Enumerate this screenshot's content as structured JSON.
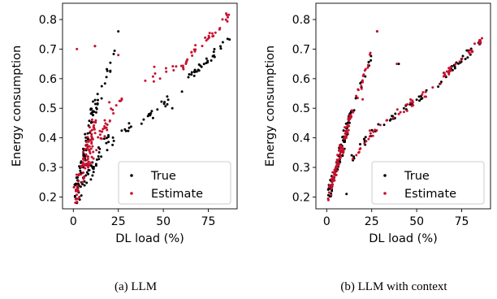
{
  "chart_data": [
    {
      "type": "scatter",
      "caption": "(a) LLM",
      "xlabel": "DL load (%)",
      "ylabel": "Energy consumption",
      "xlim": [
        -6,
        91
      ],
      "ylim": [
        0.16,
        0.855
      ],
      "xticks": [
        "0",
        "25",
        "50",
        "75"
      ],
      "yticks": [
        "0.2",
        "0.3",
        "0.4",
        "0.5",
        "0.6",
        "0.7",
        "0.8"
      ],
      "legend_position": "lower right",
      "series": [
        {
          "name": "True",
          "color": "#000000",
          "segments": [
            {
              "x0": 1,
              "y0": 0.2,
              "x1": 12,
              "y1": 0.52,
              "n": 70,
              "jx": 1.2,
              "jy": 0.03
            },
            {
              "x0": 12,
              "y0": 0.5,
              "x1": 24,
              "y1": 0.7,
              "n": 18,
              "jx": 0.8,
              "jy": 0.02
            },
            {
              "x0": 3,
              "y0": 0.21,
              "x1": 20,
              "y1": 0.4,
              "n": 40,
              "jx": 1.0,
              "jy": 0.025
            },
            {
              "x0": 20,
              "y0": 0.38,
              "x1": 35,
              "y1": 0.45,
              "n": 10,
              "jx": 1.5,
              "jy": 0.02
            },
            {
              "x0": 36,
              "y0": 0.44,
              "x1": 62,
              "y1": 0.58,
              "n": 18,
              "jx": 1.5,
              "jy": 0.015
            },
            {
              "x0": 62,
              "y0": 0.59,
              "x1": 86,
              "y1": 0.73,
              "n": 30,
              "jx": 1.0,
              "jy": 0.012
            }
          ],
          "points": [
            [
              12,
              0.71
            ],
            [
              25,
              0.76
            ],
            [
              2,
              0.18
            ],
            [
              42,
              0.48
            ],
            [
              55,
              0.5
            ]
          ]
        },
        {
          "name": "Estimate",
          "color": "#c8102e",
          "segments": [
            {
              "x0": 1,
              "y0": 0.2,
              "x1": 12,
              "y1": 0.45,
              "n": 80,
              "jx": 1.3,
              "jy": 0.035
            },
            {
              "x0": 5,
              "y0": 0.28,
              "x1": 20,
              "y1": 0.47,
              "n": 35,
              "jx": 1.2,
              "jy": 0.03
            },
            {
              "x0": 20,
              "y0": 0.47,
              "x1": 30,
              "y1": 0.56,
              "n": 8,
              "jx": 1.0,
              "jy": 0.02
            },
            {
              "x0": 36,
              "y0": 0.57,
              "x1": 60,
              "y1": 0.65,
              "n": 10,
              "jx": 2.0,
              "jy": 0.02
            },
            {
              "x0": 60,
              "y0": 0.64,
              "x1": 87,
              "y1": 0.82,
              "n": 35,
              "jx": 1.0,
              "jy": 0.015
            }
          ],
          "points": [
            [
              2,
              0.7
            ],
            [
              12,
              0.71
            ],
            [
              25,
              0.68
            ],
            [
              20,
              0.52
            ],
            [
              45,
              0.64
            ],
            [
              63,
              0.66
            ]
          ]
        }
      ]
    },
    {
      "type": "scatter",
      "caption": "(b) LLM with context",
      "xlabel": "DL load (%)",
      "ylabel": "Energy consumption",
      "xlim": [
        -6,
        91
      ],
      "ylim": [
        0.16,
        0.855
      ],
      "xticks": [
        "0",
        "25",
        "50",
        "75"
      ],
      "yticks": [
        "0.2",
        "0.3",
        "0.4",
        "0.5",
        "0.6",
        "0.7",
        "0.8"
      ],
      "legend_position": "lower right",
      "series": [
        {
          "name": "True",
          "color": "#000000",
          "segments": [
            {
              "x0": 1,
              "y0": 0.2,
              "x1": 13,
              "y1": 0.47,
              "n": 80,
              "jx": 0.9,
              "jy": 0.02
            },
            {
              "x0": 13,
              "y0": 0.47,
              "x1": 25,
              "y1": 0.68,
              "n": 18,
              "jx": 0.7,
              "jy": 0.015
            },
            {
              "x0": 14,
              "y0": 0.33,
              "x1": 30,
              "y1": 0.45,
              "n": 14,
              "jx": 1.0,
              "jy": 0.015
            },
            {
              "x0": 30,
              "y0": 0.44,
              "x1": 62,
              "y1": 0.58,
              "n": 22,
              "jx": 1.2,
              "jy": 0.012
            },
            {
              "x0": 62,
              "y0": 0.59,
              "x1": 86,
              "y1": 0.73,
              "n": 30,
              "jx": 0.9,
              "jy": 0.01
            }
          ],
          "points": [
            [
              28,
              0.76
            ],
            [
              11,
              0.21
            ],
            [
              40,
              0.65
            ]
          ]
        },
        {
          "name": "Estimate",
          "color": "#c8102e",
          "segments": [
            {
              "x0": 1,
              "y0": 0.2,
              "x1": 13,
              "y1": 0.47,
              "n": 90,
              "jx": 0.9,
              "jy": 0.02
            },
            {
              "x0": 13,
              "y0": 0.47,
              "x1": 25,
              "y1": 0.69,
              "n": 20,
              "jx": 0.7,
              "jy": 0.015
            },
            {
              "x0": 14,
              "y0": 0.33,
              "x1": 30,
              "y1": 0.45,
              "n": 16,
              "jx": 1.0,
              "jy": 0.015
            },
            {
              "x0": 30,
              "y0": 0.44,
              "x1": 62,
              "y1": 0.58,
              "n": 22,
              "jx": 1.2,
              "jy": 0.012
            },
            {
              "x0": 62,
              "y0": 0.59,
              "x1": 86,
              "y1": 0.73,
              "n": 32,
              "jx": 0.9,
              "jy": 0.01
            }
          ],
          "points": [
            [
              28,
              0.76
            ],
            [
              20,
              0.53
            ],
            [
              39,
              0.65
            ],
            [
              48,
              0.51
            ]
          ]
        }
      ]
    }
  ]
}
